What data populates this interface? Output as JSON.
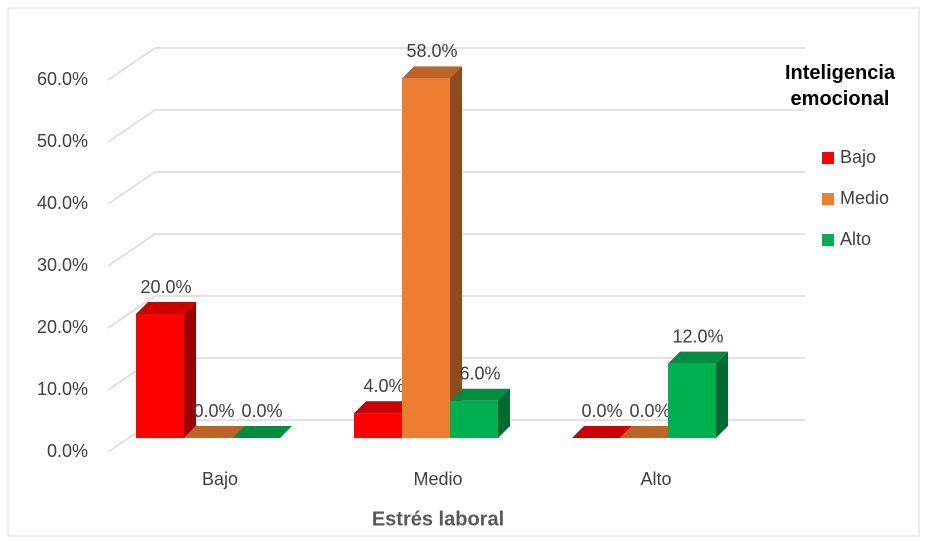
{
  "chart_data": {
    "type": "bar3d",
    "categories": [
      "Bajo",
      "Medio",
      "Alto"
    ],
    "x_label": "Estrés laboral",
    "legend_title": "Inteligencia emocional",
    "series": [
      {
        "name": "Bajo",
        "color": "#ff0000",
        "values": [
          20,
          4,
          0
        ],
        "value_labels": [
          "20.0%",
          "4.0%",
          "0.0%"
        ]
      },
      {
        "name": "Medio",
        "color": "#ed7d31",
        "values": [
          0,
          58,
          0
        ],
        "value_labels": [
          "0.0%",
          "58.0%",
          "0.0%"
        ]
      },
      {
        "name": "Alto",
        "color": "#00b050",
        "values": [
          0,
          6,
          12
        ],
        "value_labels": [
          "0.0%",
          "6.0%",
          "12.0%"
        ]
      }
    ],
    "ylim": [
      0,
      60
    ],
    "yticks": [
      {
        "value": 0,
        "label": "0.0%"
      },
      {
        "value": 10,
        "label": "10.0%"
      },
      {
        "value": 20,
        "label": "20.0%"
      },
      {
        "value": 30,
        "label": "30.0%"
      },
      {
        "value": 40,
        "label": "40.0%"
      },
      {
        "value": 50,
        "label": "50.0%"
      },
      {
        "value": 60,
        "label": "60.0%"
      }
    ],
    "grid": true,
    "legend": "right"
  }
}
